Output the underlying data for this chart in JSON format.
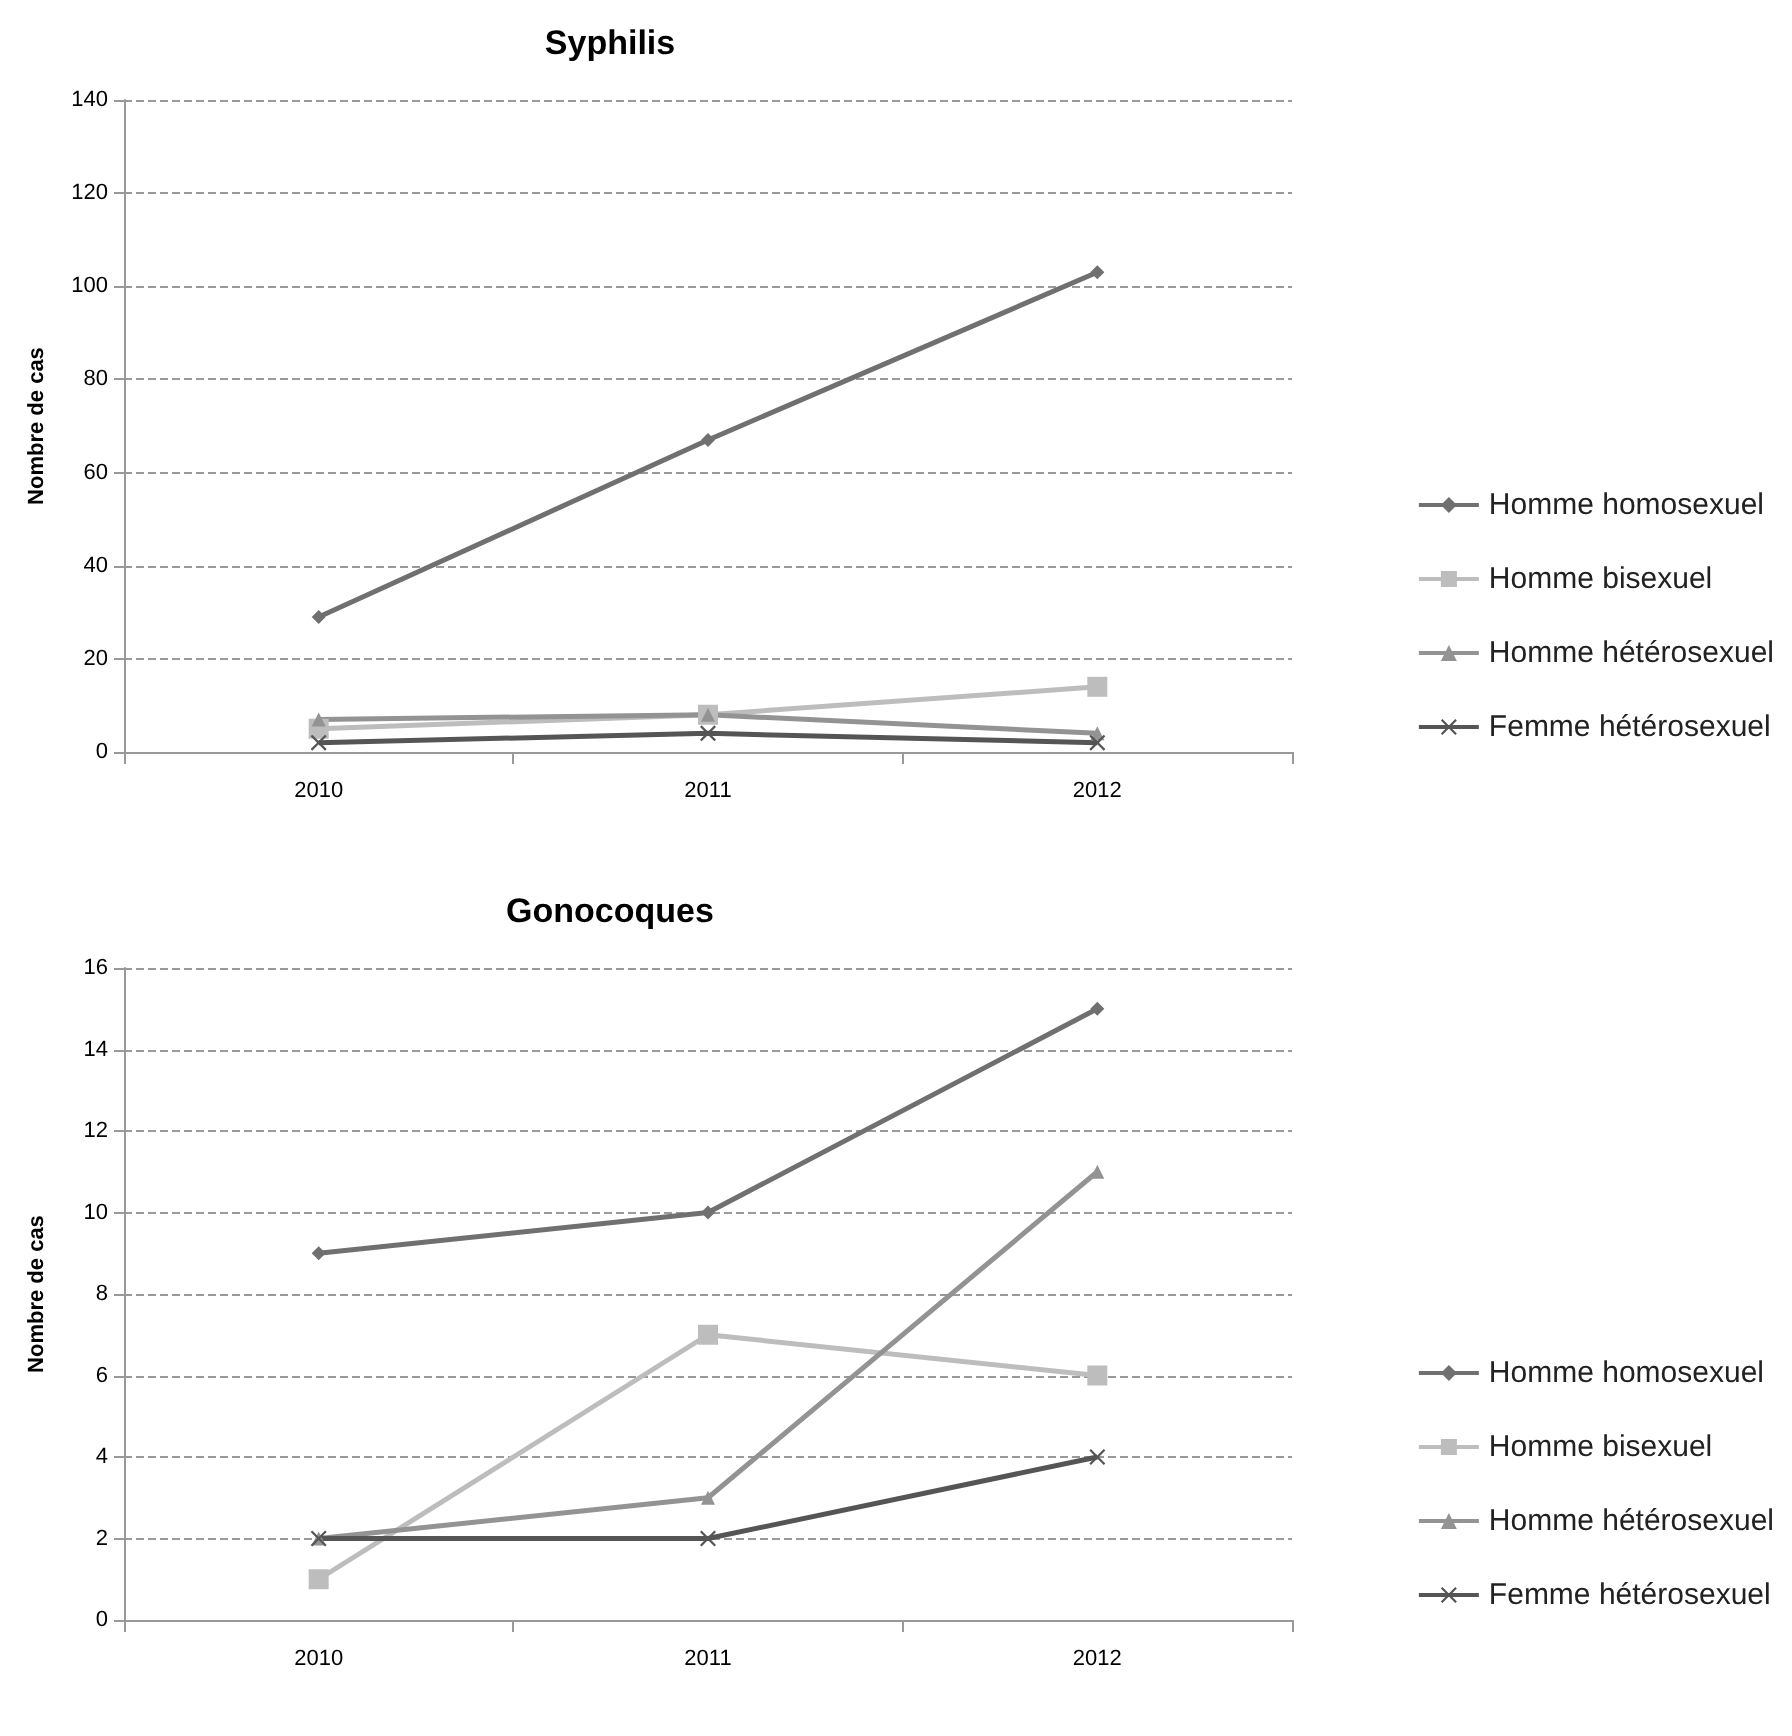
{
  "chart_data": [
    {
      "type": "line",
      "title": "Syphilis",
      "ylabel": "Nombre de cas",
      "categories": [
        "2010",
        "2011",
        "2012"
      ],
      "ylim": [
        0,
        140
      ],
      "yticks": [
        0,
        20,
        40,
        60,
        80,
        100,
        120,
        140
      ],
      "grid": "y",
      "legend": "right",
      "series": [
        {
          "name": "Homme homosexuel",
          "color": "#707070",
          "marker": "diamond",
          "values": [
            29,
            67,
            103
          ]
        },
        {
          "name": "Homme bisexuel",
          "color": "#bdbdbd",
          "marker": "square",
          "values": [
            5,
            8,
            14
          ]
        },
        {
          "name": "Homme hétérosexuel",
          "color": "#939393",
          "marker": "triangle",
          "values": [
            7,
            8,
            4
          ]
        },
        {
          "name": "Femme hétérosexuel",
          "color": "#555555",
          "marker": "cross",
          "values": [
            2,
            4,
            2
          ]
        }
      ]
    },
    {
      "type": "line",
      "title": "Gonocoques",
      "ylabel": "Nombre de cas",
      "categories": [
        "2010",
        "2011",
        "2012"
      ],
      "ylim": [
        0,
        16
      ],
      "yticks": [
        0,
        2,
        4,
        6,
        8,
        10,
        12,
        14,
        16
      ],
      "grid": "y",
      "legend": "right",
      "series": [
        {
          "name": "Homme homosexuel",
          "color": "#707070",
          "marker": "diamond",
          "values": [
            9,
            10,
            15
          ]
        },
        {
          "name": "Homme bisexuel",
          "color": "#bdbdbd",
          "marker": "square",
          "values": [
            1,
            7,
            6
          ]
        },
        {
          "name": "Homme hétérosexuel",
          "color": "#939393",
          "marker": "triangle",
          "values": [
            2,
            3,
            11
          ]
        },
        {
          "name": "Femme hétérosexuel",
          "color": "#555555",
          "marker": "cross",
          "values": [
            2,
            2,
            4
          ]
        }
      ]
    }
  ]
}
